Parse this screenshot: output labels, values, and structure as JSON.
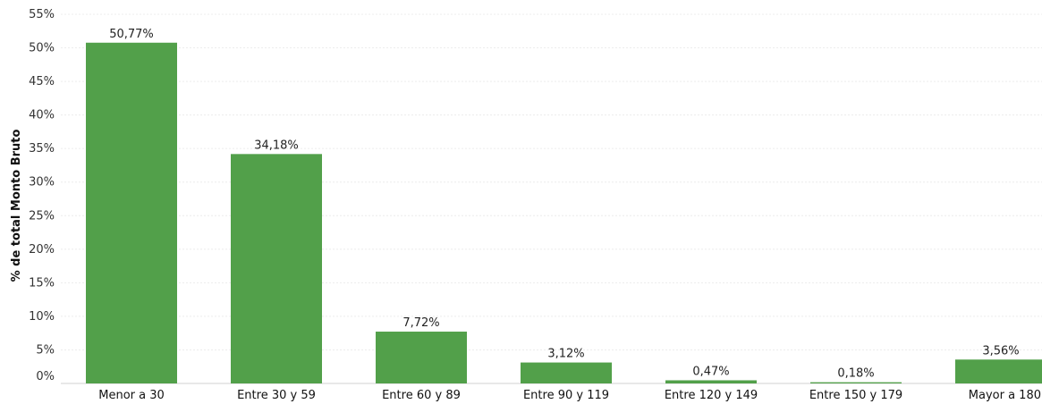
{
  "chart_data": {
    "type": "bar",
    "ylabel": "% de total Monto Bruto",
    "ylim": [
      0,
      55
    ],
    "yticks": [
      "0%",
      "5%",
      "10%",
      "15%",
      "20%",
      "25%",
      "30%",
      "35%",
      "40%",
      "45%",
      "50%",
      "55%"
    ],
    "categories": [
      "Menor a 30",
      "Entre 30 y 59",
      "Entre 60 y 89",
      "Entre 90 y 119",
      "Entre 120 y 149",
      "Entre 150 y 179",
      "Mayor a 180"
    ],
    "values": [
      50.77,
      34.18,
      7.72,
      3.12,
      0.47,
      0.18,
      3.56
    ],
    "value_labels": [
      "50,77%",
      "34,18%",
      "7,72%",
      "3,12%",
      "0,47%",
      "0,18%",
      "3,56%"
    ],
    "grid": true,
    "bar_color": "#52a04a"
  }
}
